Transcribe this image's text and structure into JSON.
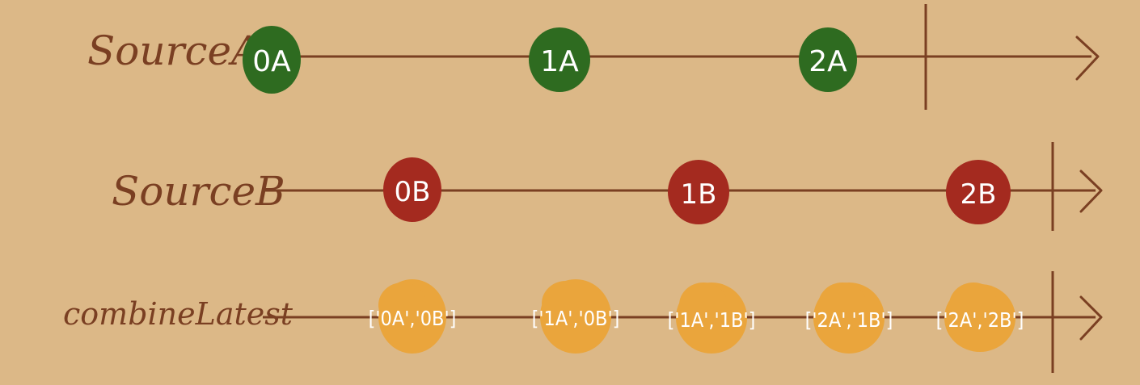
{
  "diagram": {
    "background": "#dcb887",
    "line_color": "#7a3f22",
    "streams": [
      {
        "id": "source-a",
        "label": "SourceA",
        "color": "#2e6b20",
        "items": [
          "0A",
          "1A",
          "2A"
        ]
      },
      {
        "id": "source-b",
        "label": "SourceB",
        "color": "#a42a1f",
        "items": [
          "0B",
          "1B",
          "2B"
        ]
      },
      {
        "id": "combine-latest",
        "label": "combineLatest",
        "color": "#eaa53c",
        "items": [
          "['0A','0B']",
          "['1A','0B']",
          "['1A','1B']",
          "['2A','1B']",
          "['2A','2B']"
        ]
      }
    ]
  }
}
